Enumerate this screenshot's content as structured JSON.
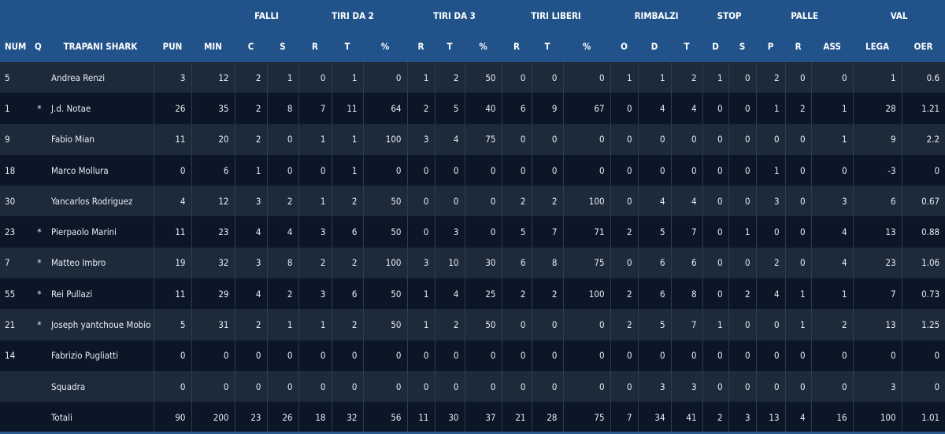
{
  "groups": [
    {
      "label": "",
      "span": 5
    },
    {
      "label": "FALLI",
      "span": 2
    },
    {
      "label": "TIRI DA 2",
      "span": 3
    },
    {
      "label": "TIRI DA 3",
      "span": 3
    },
    {
      "label": "TIRI LIBERI",
      "span": 3
    },
    {
      "label": "RIMBALZI",
      "span": 3
    },
    {
      "label": "STOP",
      "span": 2
    },
    {
      "label": "PALLE",
      "span": 3
    },
    {
      "label": "VAL",
      "span": 2
    }
  ],
  "columns": [
    "NUM",
    "Q",
    "TRAPANI SHARK",
    "PUN",
    "MIN",
    "C",
    "S",
    "R",
    "T",
    "%",
    "R",
    "T",
    "%",
    "R",
    "T",
    "%",
    "O",
    "D",
    "T",
    "D",
    "S",
    "P",
    "R",
    "ASS",
    "LEGA",
    "OER"
  ],
  "rows": [
    [
      "5",
      "",
      "Andrea Renzi",
      "3",
      "12",
      "2",
      "1",
      "0",
      "1",
      "0",
      "1",
      "2",
      "50",
      "0",
      "0",
      "0",
      "1",
      "1",
      "2",
      "1",
      "0",
      "2",
      "0",
      "0",
      "1",
      "0.6"
    ],
    [
      "1",
      "*",
      "J.d. Notae",
      "26",
      "35",
      "2",
      "8",
      "7",
      "11",
      "64",
      "2",
      "5",
      "40",
      "6",
      "9",
      "67",
      "0",
      "4",
      "4",
      "0",
      "0",
      "1",
      "2",
      "1",
      "28",
      "1.21"
    ],
    [
      "9",
      "",
      "Fabio Mian",
      "11",
      "20",
      "2",
      "0",
      "1",
      "1",
      "100",
      "3",
      "4",
      "75",
      "0",
      "0",
      "0",
      "0",
      "0",
      "0",
      "0",
      "0",
      "0",
      "0",
      "1",
      "9",
      "2.2"
    ],
    [
      "18",
      "",
      "Marco Mollura",
      "0",
      "6",
      "1",
      "0",
      "0",
      "1",
      "0",
      "0",
      "0",
      "0",
      "0",
      "0",
      "0",
      "0",
      "0",
      "0",
      "0",
      "0",
      "1",
      "0",
      "0",
      "-3",
      "0"
    ],
    [
      "30",
      "",
      "Yancarlos Rodriguez",
      "4",
      "12",
      "3",
      "2",
      "1",
      "2",
      "50",
      "0",
      "0",
      "0",
      "2",
      "2",
      "100",
      "0",
      "4",
      "4",
      "0",
      "0",
      "3",
      "0",
      "3",
      "6",
      "0.67"
    ],
    [
      "23",
      "*",
      "Pierpaolo Marini",
      "11",
      "23",
      "4",
      "4",
      "3",
      "6",
      "50",
      "0",
      "3",
      "0",
      "5",
      "7",
      "71",
      "2",
      "5",
      "7",
      "0",
      "1",
      "0",
      "0",
      "4",
      "13",
      "0.88"
    ],
    [
      "7",
      "*",
      "Matteo Imbro",
      "19",
      "32",
      "3",
      "8",
      "2",
      "2",
      "100",
      "3",
      "10",
      "30",
      "6",
      "8",
      "75",
      "0",
      "6",
      "6",
      "0",
      "0",
      "2",
      "0",
      "4",
      "23",
      "1.06"
    ],
    [
      "55",
      "*",
      "Rei Pullazi",
      "11",
      "29",
      "4",
      "2",
      "3",
      "6",
      "50",
      "1",
      "4",
      "25",
      "2",
      "2",
      "100",
      "2",
      "6",
      "8",
      "0",
      "2",
      "4",
      "1",
      "1",
      "7",
      "0.73"
    ],
    [
      "21",
      "*",
      "Joseph yantchoue Mobio",
      "5",
      "31",
      "2",
      "1",
      "1",
      "2",
      "50",
      "1",
      "2",
      "50",
      "0",
      "0",
      "0",
      "2",
      "5",
      "7",
      "1",
      "0",
      "0",
      "1",
      "2",
      "13",
      "1.25"
    ],
    [
      "14",
      "",
      "Fabrizio Pugliatti",
      "0",
      "0",
      "0",
      "0",
      "0",
      "0",
      "0",
      "0",
      "0",
      "0",
      "0",
      "0",
      "0",
      "0",
      "0",
      "0",
      "0",
      "0",
      "0",
      "0",
      "0",
      "0",
      "0"
    ],
    [
      "",
      "",
      "Squadra",
      "0",
      "0",
      "0",
      "0",
      "0",
      "0",
      "0",
      "0",
      "0",
      "0",
      "0",
      "0",
      "0",
      "0",
      "3",
      "3",
      "0",
      "0",
      "0",
      "0",
      "0",
      "3",
      "0"
    ],
    [
      "",
      "",
      "Totali",
      "90",
      "200",
      "23",
      "26",
      "18",
      "32",
      "56",
      "11",
      "30",
      "37",
      "21",
      "28",
      "75",
      "7",
      "34",
      "41",
      "2",
      "3",
      "13",
      "4",
      "16",
      "100",
      "1.01"
    ]
  ],
  "colors": {
    "header": "#21528a",
    "row_light": "#1d2a3a",
    "row_dark": "#0b1727"
  }
}
